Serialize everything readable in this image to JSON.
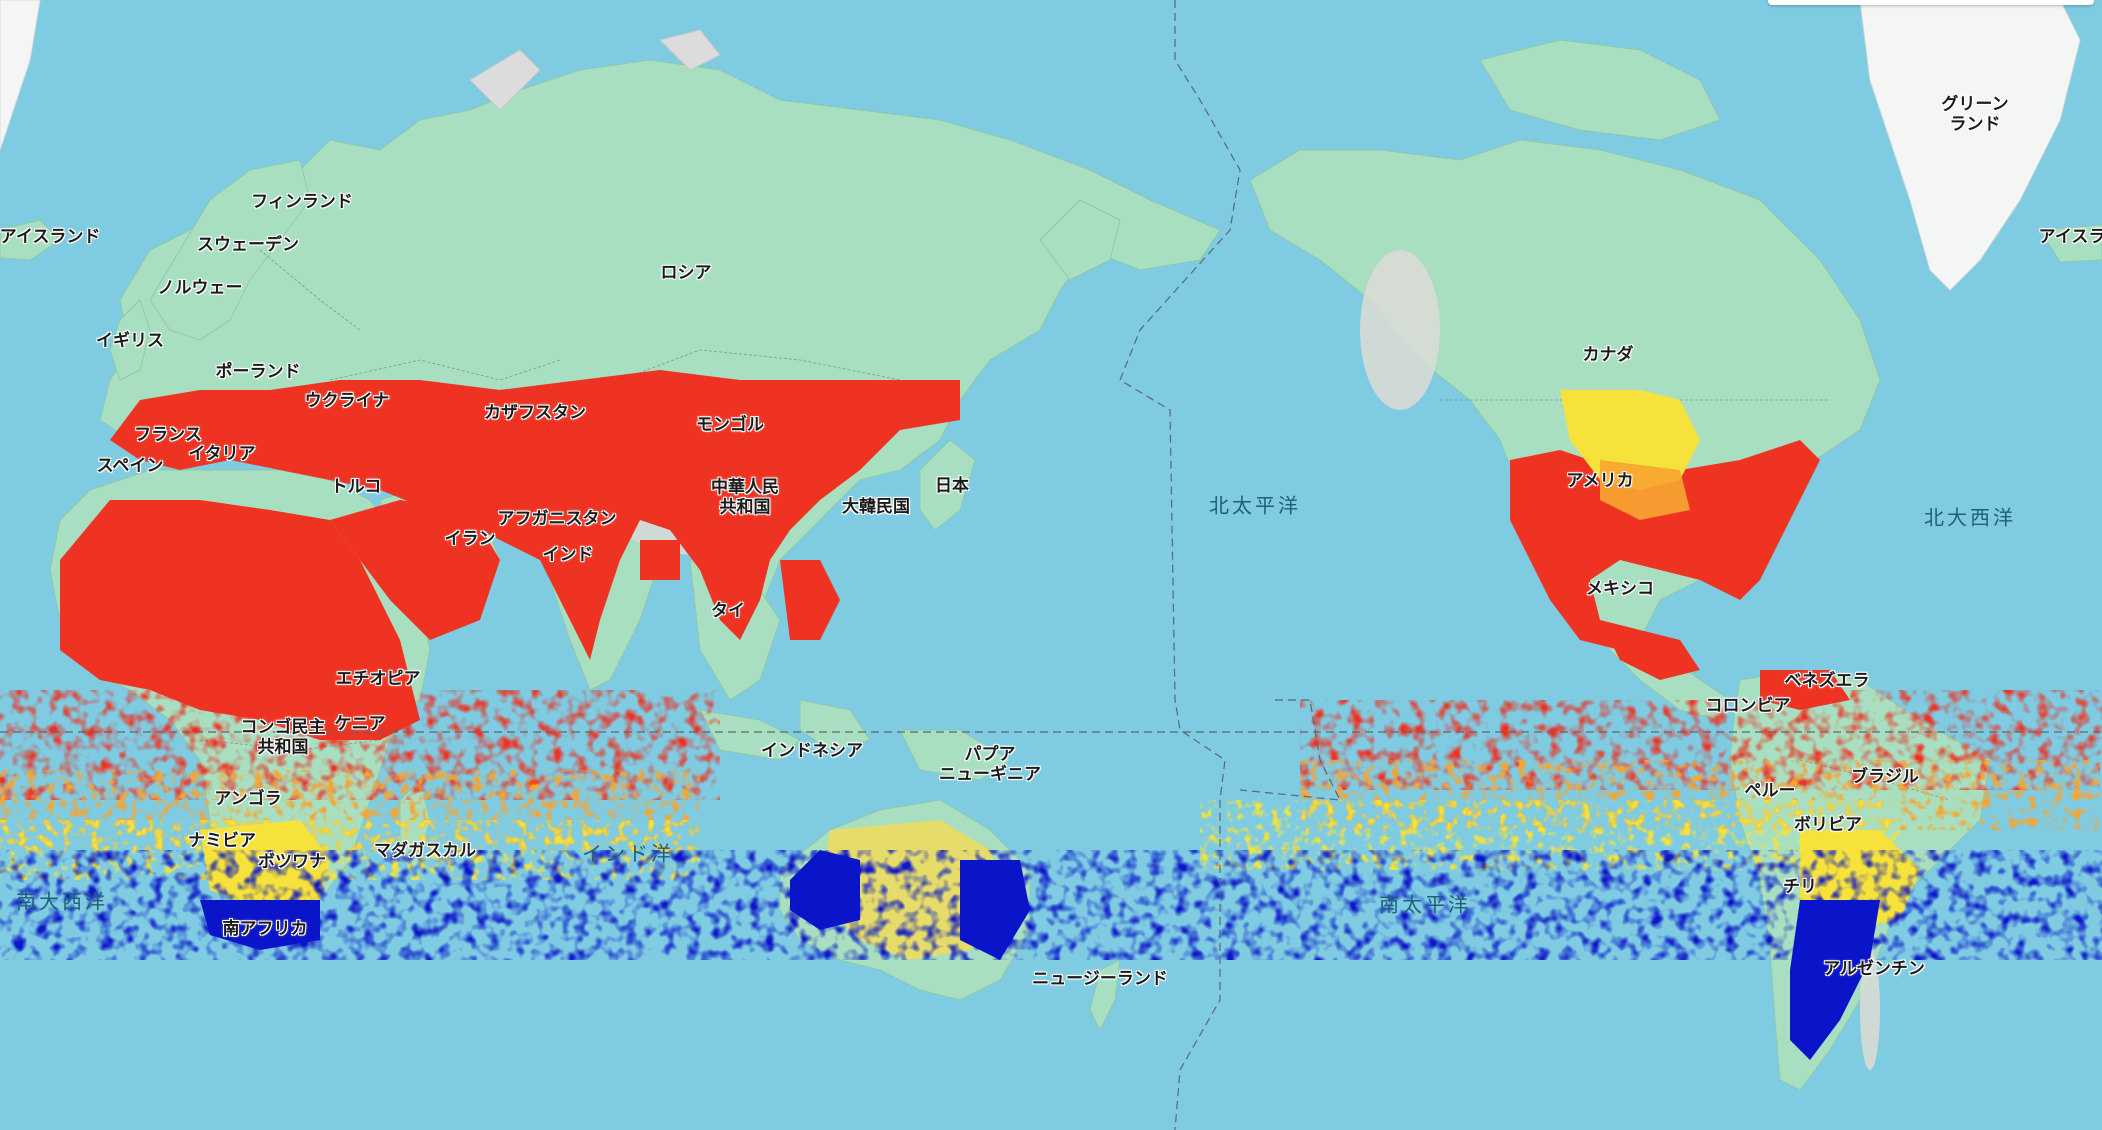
{
  "map": {
    "language": "ja",
    "water_color": "#7ecbe2",
    "land_color": "#a8dfc1",
    "ice_color": "#ffffff",
    "overlay_colors": {
      "high": "#ee3322",
      "mid_orange": "#f7a531",
      "mid_yellow": "#f6e23a",
      "low": "#0a14c8"
    },
    "labels": {
      "countries": [
        {
          "id": "iceland-left",
          "text": "アイスランド"
        },
        {
          "id": "finland",
          "text": "フィンランド"
        },
        {
          "id": "sweden",
          "text": "スウェーデン"
        },
        {
          "id": "norway",
          "text": "ノルウェー"
        },
        {
          "id": "uk",
          "text": "イギリス"
        },
        {
          "id": "poland",
          "text": "ポーランド"
        },
        {
          "id": "ukraine",
          "text": "ウクライナ"
        },
        {
          "id": "france",
          "text": "フランス"
        },
        {
          "id": "italy",
          "text": "イタリア"
        },
        {
          "id": "spain",
          "text": "スペイン"
        },
        {
          "id": "turkey",
          "text": "トルコ"
        },
        {
          "id": "russia",
          "text": "ロシア"
        },
        {
          "id": "kazakhstan",
          "text": "カザフスタン"
        },
        {
          "id": "mongolia",
          "text": "モンゴル"
        },
        {
          "id": "china",
          "text": "中華人民\n共和国"
        },
        {
          "id": "korea",
          "text": "大韓民国"
        },
        {
          "id": "japan",
          "text": "日本"
        },
        {
          "id": "afghanistan",
          "text": "アフガニスタン"
        },
        {
          "id": "iran",
          "text": "イラン"
        },
        {
          "id": "india",
          "text": "インド"
        },
        {
          "id": "thailand",
          "text": "タイ"
        },
        {
          "id": "indonesia",
          "text": "インドネシア"
        },
        {
          "id": "papua",
          "text": "パプア\nニューギニア"
        },
        {
          "id": "ethiopia",
          "text": "エチオピア"
        },
        {
          "id": "kenya",
          "text": "ケニア"
        },
        {
          "id": "drc",
          "text": "コンゴ民主\n共和国"
        },
        {
          "id": "angola",
          "text": "アンゴラ"
        },
        {
          "id": "namibia",
          "text": "ナミビア"
        },
        {
          "id": "botswana",
          "text": "ボツワナ"
        },
        {
          "id": "madagascar",
          "text": "マダガスカル"
        },
        {
          "id": "south-africa",
          "text": "南アフリカ"
        },
        {
          "id": "new-zealand",
          "text": "ニュージーランド"
        },
        {
          "id": "canada",
          "text": "カナダ"
        },
        {
          "id": "usa",
          "text": "アメリカ"
        },
        {
          "id": "mexico",
          "text": "メキシコ"
        },
        {
          "id": "venezuela",
          "text": "ベネズエラ"
        },
        {
          "id": "colombia",
          "text": "コロンビア"
        },
        {
          "id": "peru",
          "text": "ペルー"
        },
        {
          "id": "brazil",
          "text": "ブラジル"
        },
        {
          "id": "bolivia",
          "text": "ボリビア"
        },
        {
          "id": "chile",
          "text": "チリ"
        },
        {
          "id": "argentina",
          "text": "アルゼンチン"
        },
        {
          "id": "greenland",
          "text": "グリーン\nランド"
        },
        {
          "id": "iceland-right",
          "text": "アイスラ"
        }
      ],
      "oceans": [
        {
          "id": "north-pacific",
          "text": "北太平洋"
        },
        {
          "id": "north-atlantic",
          "text": "北大西洋"
        },
        {
          "id": "indian-ocean",
          "text": "インド洋"
        },
        {
          "id": "south-pacific",
          "text": "南太平洋"
        },
        {
          "id": "south-atlantic",
          "text": "南大西洋"
        }
      ]
    }
  }
}
